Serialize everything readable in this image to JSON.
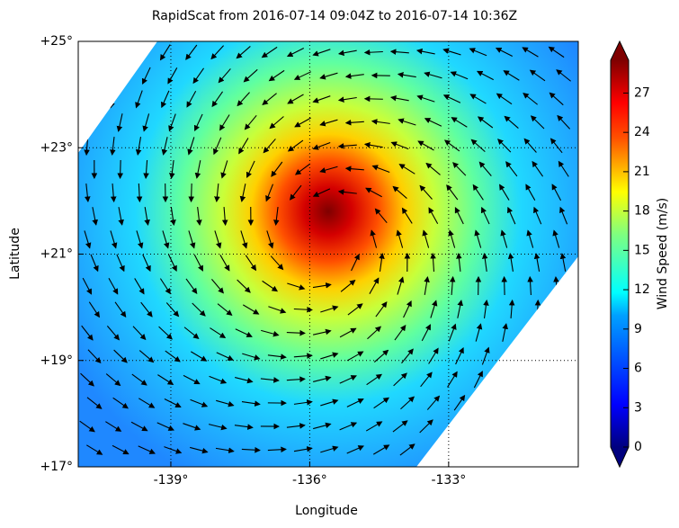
{
  "chart_data": {
    "type": "wind-map",
    "title": "RapidScat  from 2016-07-14 09:04Z to 2016-07-14 10:36Z",
    "x_label": "Longitude",
    "y_label": "Latitude",
    "xlim": [
      -141,
      -130.2
    ],
    "xticks": [
      {
        "value": -139,
        "label": "-139°"
      },
      {
        "value": -136,
        "label": "-136°"
      },
      {
        "value": -133,
        "label": "-133°"
      }
    ],
    "ylim": [
      17,
      25
    ],
    "yticks": [
      {
        "value": 17,
        "label": "+17°"
      },
      {
        "value": 19,
        "label": "+19°"
      },
      {
        "value": 21,
        "label": "+21°"
      },
      {
        "value": 23,
        "label": "+23°"
      },
      {
        "value": 25,
        "label": "+25°"
      }
    ],
    "grid": true,
    "colorbar": {
      "label": "Wind Speed (m/s)",
      "clim": [
        0,
        29.5
      ],
      "ticks": [
        0,
        3,
        6,
        9,
        12,
        15,
        18,
        21,
        24,
        27
      ]
    }
  }
}
